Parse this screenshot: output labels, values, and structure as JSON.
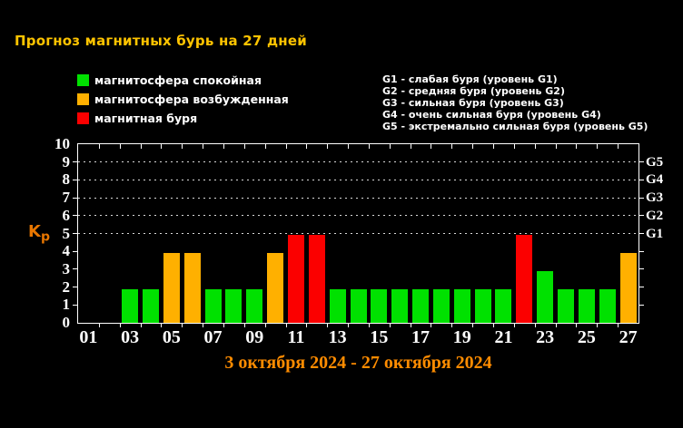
{
  "title": "Прогноз магнитных бурь на 27 дней",
  "legend": {
    "items": [
      {
        "key": "quiet",
        "label": "магнитосфера спокойная",
        "color": "#00e100"
      },
      {
        "key": "active",
        "label": "магнитосфера возбужденная",
        "color": "#ffb000"
      },
      {
        "key": "storm",
        "label": "магнитная буря",
        "color": "#fb0000"
      }
    ]
  },
  "storm_levels": {
    "lines": [
      "G1 - слабая буря (уровень G1)",
      "G2 - средняя буря (уровень G2)",
      "G3 - сильная буря (уровень G3)",
      "G4 - очень сильная буря (уровень G4)",
      "G5 - экстремально сильная буря (уровень G5)"
    ]
  },
  "chart_data": {
    "type": "bar",
    "title": "Прогноз магнитных бурь на 27 дней",
    "ylabel": "Kp",
    "xlabel": "3 октября 2024 - 27 октября 2024",
    "ylim": [
      0,
      10
    ],
    "y_ticks": [
      0,
      1,
      2,
      3,
      4,
      5,
      6,
      7,
      8,
      9,
      10
    ],
    "dotted_gridlines_at_kp": [
      5,
      6,
      7,
      8,
      9
    ],
    "x_tick_labels": [
      "01",
      "03",
      "05",
      "07",
      "09",
      "11",
      "13",
      "15",
      "17",
      "19",
      "21",
      "23",
      "25",
      "27"
    ],
    "right_axis_labels": [
      {
        "label": "G5",
        "kp": 9
      },
      {
        "label": "G4",
        "kp": 8
      },
      {
        "label": "G3",
        "kp": 7
      },
      {
        "label": "G2",
        "kp": 6
      },
      {
        "label": "G1",
        "kp": 5
      }
    ],
    "days": [
      {
        "day": "01",
        "kp": 0,
        "status": "none"
      },
      {
        "day": "02",
        "kp": 0,
        "status": "none"
      },
      {
        "day": "03",
        "kp": 1.9,
        "status": "quiet"
      },
      {
        "day": "04",
        "kp": 1.9,
        "status": "quiet"
      },
      {
        "day": "05",
        "kp": 3.9,
        "status": "active"
      },
      {
        "day": "06",
        "kp": 3.9,
        "status": "active"
      },
      {
        "day": "07",
        "kp": 1.9,
        "status": "quiet"
      },
      {
        "day": "08",
        "kp": 1.9,
        "status": "quiet"
      },
      {
        "day": "09",
        "kp": 1.9,
        "status": "quiet"
      },
      {
        "day": "10",
        "kp": 3.9,
        "status": "active"
      },
      {
        "day": "11",
        "kp": 4.9,
        "status": "storm"
      },
      {
        "day": "12",
        "kp": 4.9,
        "status": "storm"
      },
      {
        "day": "13",
        "kp": 1.9,
        "status": "quiet"
      },
      {
        "day": "14",
        "kp": 1.9,
        "status": "quiet"
      },
      {
        "day": "15",
        "kp": 1.9,
        "status": "quiet"
      },
      {
        "day": "16",
        "kp": 1.9,
        "status": "quiet"
      },
      {
        "day": "17",
        "kp": 1.9,
        "status": "quiet"
      },
      {
        "day": "18",
        "kp": 1.9,
        "status": "quiet"
      },
      {
        "day": "19",
        "kp": 1.9,
        "status": "quiet"
      },
      {
        "day": "20",
        "kp": 1.9,
        "status": "quiet"
      },
      {
        "day": "21",
        "kp": 1.9,
        "status": "quiet"
      },
      {
        "day": "22",
        "kp": 4.9,
        "status": "storm"
      },
      {
        "day": "23",
        "kp": 2.9,
        "status": "quiet"
      },
      {
        "day": "24",
        "kp": 1.9,
        "status": "quiet"
      },
      {
        "day": "25",
        "kp": 1.9,
        "status": "quiet"
      },
      {
        "day": "26",
        "kp": 1.9,
        "status": "quiet"
      },
      {
        "day": "27",
        "kp": 3.9,
        "status": "active"
      }
    ]
  },
  "footer": {
    "date_range": "3 октября 2024 - 27 октября 2024"
  },
  "colors": {
    "background": "#000000",
    "axis": "#ffffff",
    "text": "#ffffff",
    "title": "#ffc400",
    "kp_label": "#e87600",
    "date": "#ff8c00",
    "quiet": "#00e100",
    "active": "#ffb000",
    "storm": "#fb0000",
    "none": "transparent"
  }
}
